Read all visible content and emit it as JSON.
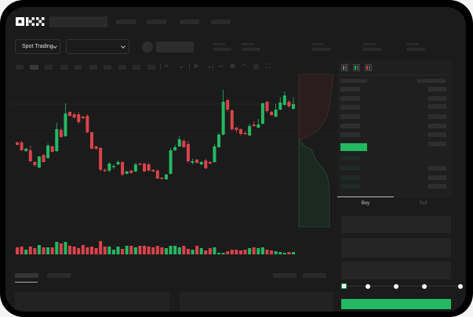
{
  "logo": "OKX",
  "toolbar": {
    "market_dropdown": "Spot Trading"
  },
  "trade": {
    "buy_tab": "Buy",
    "sell_tab": "Sell",
    "slider_percent": 0
  },
  "colors": {
    "up": "#25b862",
    "down": "#d9434b",
    "background": "#1b1b1b"
  },
  "icons": [
    "okx-logo",
    "chevron-down-icon",
    "indicator-icon",
    "line-icon",
    "ruler-icon",
    "gauge-icon",
    "target-icon",
    "fullscreen-icon",
    "orderbook-both-icon",
    "orderbook-buy-icon",
    "orderbook-sell-icon"
  ],
  "chart": {
    "type": "candlestick",
    "candles": [
      [
        68,
        65,
        69,
        64
      ],
      [
        68,
        58,
        70,
        57
      ],
      [
        57,
        60,
        61,
        56
      ],
      [
        58,
        44,
        64,
        43
      ],
      [
        43,
        39,
        44,
        37
      ],
      [
        36,
        50,
        51,
        35
      ],
      [
        52,
        43,
        53,
        42
      ],
      [
        48,
        64,
        67,
        47
      ],
      [
        63,
        56,
        64,
        55
      ],
      [
        57,
        85,
        93,
        56
      ],
      [
        84,
        75,
        87,
        74
      ],
      [
        76,
        105,
        118,
        75
      ],
      [
        107,
        102,
        108,
        101
      ],
      [
        104,
        100,
        106,
        98
      ],
      [
        104,
        94,
        107,
        92
      ],
      [
        101,
        99,
        102,
        98
      ],
      [
        102,
        81,
        104,
        80
      ],
      [
        81,
        60,
        82,
        59
      ],
      [
        63,
        60,
        64,
        58
      ],
      [
        61,
        33,
        62,
        31
      ],
      [
        33,
        32,
        35,
        30
      ],
      [
        32,
        41,
        43,
        30
      ],
      [
        37,
        38,
        40,
        34
      ],
      [
        40,
        43,
        45,
        39
      ],
      [
        43,
        27,
        44,
        25
      ],
      [
        28,
        31,
        32,
        27
      ],
      [
        32,
        29,
        33,
        28
      ],
      [
        31,
        40,
        42,
        30
      ],
      [
        41,
        40,
        42,
        39
      ],
      [
        41,
        31,
        42,
        30
      ],
      [
        40,
        32,
        42,
        31
      ],
      [
        33,
        31,
        34,
        30
      ],
      [
        32,
        22,
        34,
        21
      ],
      [
        23,
        22,
        24,
        21
      ],
      [
        21,
        27,
        28,
        20
      ],
      [
        28,
        58,
        61,
        27
      ],
      [
        58,
        62,
        65,
        57
      ],
      [
        63,
        72,
        76,
        62
      ],
      [
        70,
        62,
        72,
        61
      ],
      [
        66,
        44,
        70,
        42
      ],
      [
        42,
        44,
        47,
        40
      ],
      [
        46,
        42,
        47,
        41
      ],
      [
        40,
        43,
        44,
        39
      ],
      [
        45,
        35,
        47,
        34
      ],
      [
        43,
        41,
        44,
        40
      ],
      [
        43,
        63,
        66,
        42
      ],
      [
        62,
        78,
        80,
        61
      ],
      [
        78,
        120,
        135,
        77
      ],
      [
        122,
        110,
        124,
        107
      ],
      [
        109,
        85,
        110,
        83
      ],
      [
        87,
        84,
        88,
        81
      ],
      [
        85,
        79,
        86,
        77
      ],
      [
        80,
        79,
        83,
        78
      ],
      [
        77,
        89,
        92,
        76
      ],
      [
        91,
        89,
        95,
        88
      ],
      [
        87,
        91,
        98,
        86
      ],
      [
        92,
        118,
        119,
        91
      ],
      [
        120,
        108,
        121,
        106
      ],
      [
        107,
        103,
        108,
        102
      ],
      [
        101,
        110,
        117,
        100
      ],
      [
        110,
        119,
        126,
        109
      ],
      [
        116,
        128,
        133,
        115
      ],
      [
        120,
        114,
        122,
        112
      ],
      [
        111,
        117,
        126,
        110
      ]
    ],
    "volumes": [
      9,
      10,
      6,
      10,
      8,
      12,
      9,
      9,
      9,
      16,
      14,
      16,
      11,
      10,
      8,
      12,
      9,
      10,
      8,
      17,
      10,
      10,
      6,
      10,
      7,
      11,
      11,
      9,
      11,
      11,
      10,
      9,
      11,
      9,
      8,
      11,
      11,
      9,
      11,
      7,
      6,
      11,
      8,
      5,
      8,
      9,
      2,
      2,
      4,
      6,
      6,
      5,
      6,
      8,
      9,
      8,
      9,
      6,
      5,
      4,
      3,
      2,
      3,
      3
    ]
  }
}
